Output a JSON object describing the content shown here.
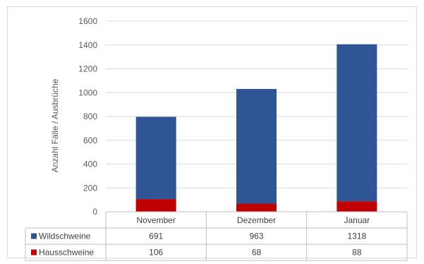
{
  "chart_data": {
    "type": "bar",
    "stacked": true,
    "categories": [
      "November",
      "Dezember",
      "Januar"
    ],
    "series": [
      {
        "name": "Hausschweine",
        "values": [
          106,
          68,
          88
        ],
        "color": "#c00000"
      },
      {
        "name": "Wildschweine",
        "values": [
          691,
          963,
          1318
        ],
        "color": "#2f5597"
      }
    ],
    "ylabel": "Anzahl Fälle / Ausbrüche",
    "ylim": [
      0,
      1600
    ],
    "yticks": [
      0,
      200,
      400,
      600,
      800,
      1000,
      1200,
      1400,
      1600
    ],
    "grid": true,
    "legend": "data-table",
    "table_rows": [
      {
        "name": "Wildschweine",
        "values": [
          "691",
          "963",
          "1318"
        ],
        "color": "#2f5597"
      },
      {
        "name": "Hausschweine",
        "values": [
          "106",
          "68",
          "88"
        ],
        "color": "#c00000"
      }
    ]
  }
}
